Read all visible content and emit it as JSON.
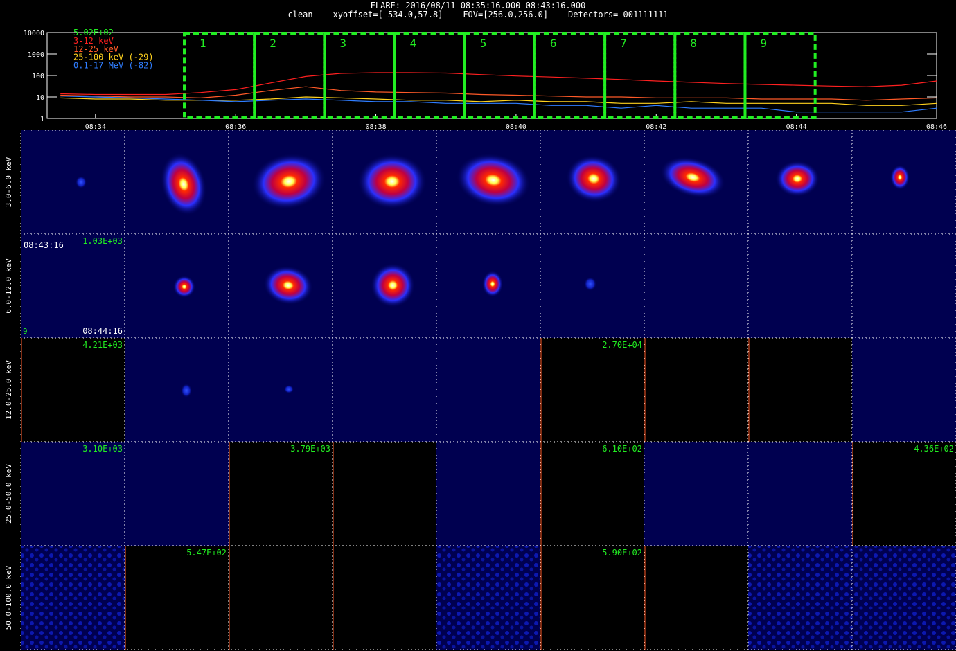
{
  "chart_data": {
    "type": "line",
    "title": "FLARE: 2016/08/11 08:35:16.000-08:43:16.000",
    "subtitle": "clean    xyoffset=[-534.0,57.8]    FOV=[256.0,256.0]    Detectors= 001111111",
    "peak_annotation": "5.02E+02",
    "x": [
      33.5,
      34,
      34.5,
      35,
      35.5,
      36,
      36.5,
      37,
      37.5,
      38,
      38.5,
      39,
      39.5,
      40,
      40.5,
      41,
      41.5,
      42,
      42.5,
      43,
      43.5,
      44,
      44.5,
      45,
      45.5,
      46
    ],
    "series": [
      {
        "name": "3-12 keV",
        "color": "#ff2020",
        "values": [
          14,
          13,
          13,
          13,
          16,
          22,
          45,
          90,
          125,
          135,
          135,
          130,
          110,
          95,
          85,
          75,
          65,
          55,
          48,
          42,
          38,
          35,
          32,
          30,
          35,
          55
        ]
      },
      {
        "name": "12-25 keV",
        "color": "#ff5a28",
        "values": [
          12,
          11,
          10,
          10,
          9,
          12,
          20,
          30,
          20,
          17,
          16,
          15,
          13,
          12,
          11,
          10,
          10,
          9,
          9,
          9,
          8,
          8,
          8,
          7,
          8,
          9
        ]
      },
      {
        "name": "25-100 keV (-29)",
        "color": "#ffd21e",
        "values": [
          9,
          8,
          8,
          7,
          7,
          7,
          8,
          10,
          9,
          8,
          7,
          7,
          6,
          7,
          6,
          6,
          5,
          5,
          6,
          5,
          5,
          5,
          5,
          4,
          4,
          5
        ]
      },
      {
        "name": "0.1-17 MeV (-82)",
        "color": "#2f7dff",
        "values": [
          11,
          10,
          9,
          8,
          7,
          6,
          7,
          8,
          7,
          6,
          6,
          5,
          5,
          5,
          4,
          4,
          3,
          4,
          3,
          3,
          3,
          2,
          2,
          2,
          2,
          3
        ]
      }
    ],
    "log_y": true,
    "xlim": [
      33.31,
      46.0
    ],
    "xticks": [
      {
        "value": 34,
        "label": "08:34"
      },
      {
        "value": 36,
        "label": "08:36"
      },
      {
        "value": 38,
        "label": "08:38"
      },
      {
        "value": 40,
        "label": "08:40"
      },
      {
        "value": 42,
        "label": "08:42"
      },
      {
        "value": 44,
        "label": "08:44"
      },
      {
        "value": 46,
        "label": "08:46"
      }
    ],
    "ylim": [
      1,
      10000
    ],
    "yticks": [
      1,
      10,
      100,
      1000,
      10000
    ],
    "interval_edges": [
      35.267,
      36.267,
      37.267,
      38.267,
      39.267,
      40.267,
      41.267,
      42.267,
      43.267,
      44.267
    ],
    "interval_labels": [
      "1",
      "2",
      "3",
      "4",
      "5",
      "6",
      "7",
      "8",
      "9"
    ],
    "interval_color": "#22ee22"
  },
  "image_grid": {
    "row_labels": [
      "3.0-6.0 keV",
      "6.0-12.0 keV",
      "12.0-25.0 keV",
      "25.0-50.0 keV",
      "50.0-100.0 keV"
    ],
    "peak_labels": [
      [
        null,
        null,
        null,
        null,
        null,
        null,
        null,
        null,
        null
      ],
      [
        "1.03E+03",
        null,
        null,
        null,
        null,
        null,
        null,
        null,
        null
      ],
      [
        "4.21E+03",
        null,
        null,
        null,
        null,
        "2.70E+04",
        null,
        null,
        null
      ],
      [
        "3.10E+03",
        null,
        "3.79E+03",
        null,
        null,
        "6.10E+02",
        null,
        null,
        "4.36E+02"
      ],
      [
        null,
        "5.47E+02",
        null,
        null,
        null,
        "5.90E+02",
        null,
        null,
        null
      ]
    ],
    "time_range": {
      "start": "08:43:16",
      "end": "08:44:16",
      "interval": "9"
    }
  }
}
